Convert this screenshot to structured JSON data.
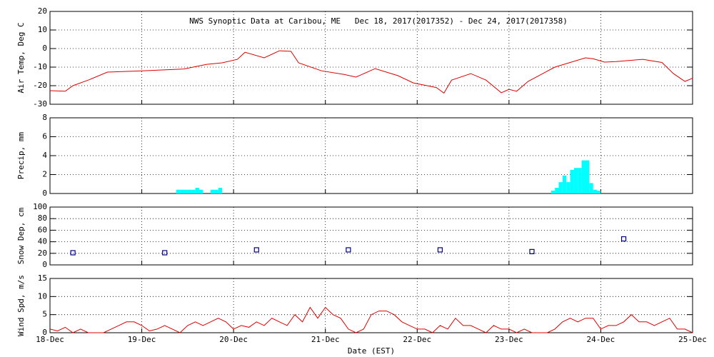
{
  "chart_data": {
    "title": "NWS Synoptic Data at Caribou, ME   Dec 18, 2017(2017352) - Dec 24, 2017(2017358)",
    "x_label": "Date (EST)",
    "xlim": [
      0,
      168
    ],
    "xticks": [
      {
        "value": 0,
        "label": "18-Dec"
      },
      {
        "value": 24,
        "label": "19-Dec"
      },
      {
        "value": 48,
        "label": "20-Dec"
      },
      {
        "value": 72,
        "label": "21-Dec"
      },
      {
        "value": 96,
        "label": "22-Dec"
      },
      {
        "value": 120,
        "label": "23-Dec"
      },
      {
        "value": 144,
        "label": "24-Dec"
      },
      {
        "value": 168,
        "label": "25-Dec"
      }
    ],
    "grid": true,
    "panels": [
      {
        "type": "line",
        "y_label": "Air Temp, Deg C",
        "color": "#dd0000",
        "ylim": [
          -30,
          20
        ],
        "yticks": [
          -30,
          -20,
          -10,
          0,
          10,
          20
        ],
        "x": [
          0,
          4,
          6,
          10,
          15,
          24,
          35,
          41,
          45,
          49,
          51,
          56,
          60,
          63,
          65,
          71,
          77,
          80,
          85,
          91,
          95,
          101,
          103,
          105,
          110,
          114,
          118,
          120,
          122,
          125,
          132,
          140,
          142,
          145,
          148,
          151,
          155,
          160,
          163,
          166,
          168
        ],
        "values": [
          -22.7,
          -23,
          -20,
          -17,
          -12.7,
          -12,
          -11,
          -8.5,
          -7.7,
          -5.8,
          -2,
          -5,
          -1.2,
          -1.5,
          -7.7,
          -12,
          -14,
          -15.4,
          -10.8,
          -14.6,
          -18.5,
          -21,
          -24,
          -17,
          -13.5,
          -17,
          -23.8,
          -22,
          -23,
          -17.7,
          -10,
          -5,
          -5.5,
          -7.3,
          -7,
          -6.5,
          -5.8,
          -7.5,
          -13.5,
          -17.7,
          -16
        ]
      },
      {
        "type": "bar",
        "y_label": "Precip, mm",
        "color": "#00ffff",
        "ylim": [
          0,
          8
        ],
        "yticks": [
          0,
          2,
          4,
          6,
          8
        ],
        "x": [
          33,
          34,
          35,
          36,
          37,
          38,
          39,
          42,
          43,
          44,
          131,
          132,
          133,
          134,
          135,
          136,
          137,
          138,
          139,
          140,
          141,
          142,
          143
        ],
        "values": [
          0.4,
          0.4,
          0.4,
          0.4,
          0.4,
          0.6,
          0.4,
          0.4,
          0.4,
          0.6,
          0.3,
          0.6,
          1.2,
          1.9,
          1.2,
          2.5,
          2.7,
          2.7,
          3.5,
          3.5,
          1.1,
          0.4,
          0.3
        ]
      },
      {
        "type": "scatter",
        "y_label": "Snow Dep, cm",
        "color": "#000080",
        "ylim": [
          0,
          100
        ],
        "yticks": [
          0,
          20,
          40,
          60,
          80,
          100
        ],
        "x": [
          6,
          30,
          54,
          78,
          102,
          126,
          150
        ],
        "values": [
          21,
          21,
          26,
          26,
          26,
          23,
          45
        ]
      },
      {
        "type": "line",
        "y_label": "Wind Spd, m/s",
        "color": "#dd0000",
        "ylim": [
          0,
          15
        ],
        "yticks": [
          0,
          5,
          10,
          15
        ],
        "x": [
          0,
          2,
          4,
          6,
          8,
          10,
          12,
          14,
          16,
          18,
          20,
          22,
          24,
          26,
          28,
          30,
          32,
          34,
          36,
          38,
          40,
          42,
          44,
          46,
          48,
          50,
          52,
          54,
          56,
          58,
          60,
          62,
          64,
          66,
          68,
          70,
          72,
          74,
          76,
          78,
          80,
          82,
          84,
          86,
          88,
          90,
          92,
          94,
          96,
          98,
          100,
          102,
          104,
          106,
          108,
          110,
          112,
          114,
          116,
          118,
          120,
          122,
          124,
          126,
          128,
          130,
          132,
          134,
          136,
          138,
          140,
          142,
          144,
          146,
          148,
          150,
          152,
          154,
          156,
          158,
          160,
          162,
          164,
          166,
          168
        ],
        "values": [
          1,
          0.5,
          1.5,
          0,
          1,
          0,
          0,
          0,
          1,
          2,
          3,
          3,
          2,
          0.5,
          1,
          2,
          1,
          0,
          2,
          3,
          2,
          3,
          4,
          3,
          1,
          2,
          1.5,
          3,
          2,
          4,
          3,
          2,
          5,
          3,
          7,
          4,
          7,
          5,
          4,
          1,
          0,
          1,
          5,
          6,
          6,
          5,
          3,
          2,
          1,
          1,
          0,
          2,
          1,
          4,
          2,
          2,
          1,
          0,
          2,
          1,
          1,
          0,
          1,
          0,
          0,
          0,
          1,
          3,
          4,
          3,
          4,
          4,
          1,
          2,
          2,
          3,
          5,
          3,
          3,
          2,
          3,
          4,
          1,
          1,
          0
        ]
      }
    ]
  }
}
